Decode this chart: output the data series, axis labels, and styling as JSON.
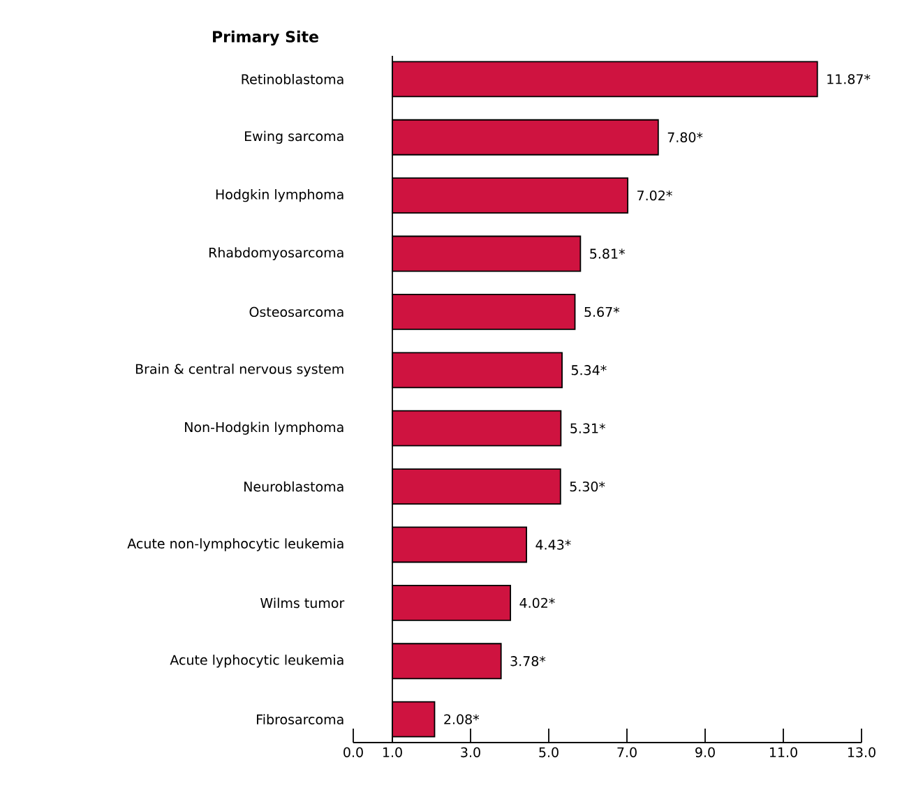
{
  "chart_data": {
    "type": "bar",
    "orientation": "horizontal",
    "ylabel": "Primary Site",
    "categories": [
      "Retinoblastoma",
      "Ewing sarcoma",
      "Hodgkin lymphoma",
      "Rhabdomyosarcoma",
      "Osteosarcoma",
      "Brain & central nervous system",
      "Non-Hodgkin lymphoma",
      "Neuroblastoma",
      "Acute non-lymphocytic leukemia",
      "Wilms tumor",
      "Acute lyphocytic leukemia",
      "Fibrosarcoma"
    ],
    "base": [
      1,
      1,
      1,
      1,
      1,
      1,
      1,
      1,
      1,
      1,
      1,
      1
    ],
    "values": [
      10.87,
      6.8,
      6.02,
      4.81,
      4.67,
      4.34,
      4.31,
      4.3,
      3.43,
      3.02,
      2.78,
      1.08
    ],
    "value_labels": [
      "11.87*",
      "7.80*",
      "7.02*",
      "5.81*",
      "5.67*",
      "5.34*",
      "5.31*",
      "5.30*",
      "4.43*",
      "4.02*",
      "3.78*",
      "2.08*"
    ],
    "color": "#cf1340",
    "xlim": [
      0,
      13
    ],
    "xticks": [
      {
        "value": 0,
        "label": "0.0"
      },
      {
        "value": 1,
        "label": "1.0"
      },
      {
        "value": 3,
        "label": "3.0"
      },
      {
        "value": 5,
        "label": "5.0"
      },
      {
        "value": 7,
        "label": "7.0"
      },
      {
        "value": 9,
        "label": "9.0"
      },
      {
        "value": 11,
        "label": "11.0"
      },
      {
        "value": 13,
        "label": "13.0"
      }
    ]
  }
}
